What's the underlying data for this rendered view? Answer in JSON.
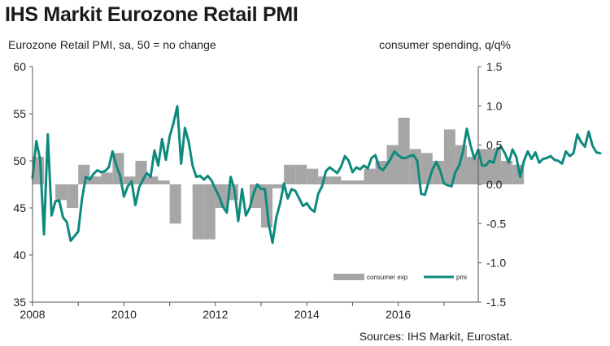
{
  "chart_data": {
    "type": "bar+line",
    "title": "IHS Markit Eurozone Retail PMI",
    "left_axis_label": "Eurozone Retail PMI, sa, 50 = no change",
    "right_axis_label": "consumer spending, q/q%",
    "source": "Sources: IHS Markit, Eurostat.",
    "left_axis": {
      "min": 35,
      "max": 60,
      "ticks": [
        60,
        55,
        50,
        45,
        40,
        35
      ],
      "tick_labels": [
        "60",
        "55",
        "50",
        "45",
        "40",
        "35"
      ]
    },
    "right_axis": {
      "min": -1.5,
      "max": 1.5,
      "ticks": [
        1.5,
        1.0,
        0.5,
        0.0,
        -0.5,
        -1.0,
        -1.5
      ],
      "tick_labels": [
        "1.5",
        "1.0",
        "0.5",
        "0.0",
        "-0.5",
        "-1.0",
        "-1.5"
      ]
    },
    "x_axis": {
      "start": 2008,
      "end": 2017.75,
      "ticks": [
        2008,
        2010,
        2012,
        2014,
        2016
      ],
      "tick_labels": [
        "2008",
        "2010",
        "2012",
        "2014",
        "2016"
      ]
    },
    "legend": [
      {
        "name": "consumer exp",
        "type": "bar",
        "color": "#a6a6a6"
      },
      {
        "name": "pmi",
        "type": "line",
        "color": "#0e8a7c"
      }
    ],
    "colors": {
      "bars": "#a6a6a6",
      "line": "#0e8a7c",
      "axis": "#555555"
    },
    "series": [
      {
        "name": "consumer exp",
        "axis": "right",
        "quarterly_start": 2008.0,
        "values": [
          0.35,
          0.0,
          -0.2,
          -0.3,
          0.25,
          0.1,
          0.15,
          0.4,
          0.1,
          0.3,
          0.1,
          0.05,
          -0.5,
          0.0,
          -0.7,
          -0.7,
          -0.3,
          -0.2,
          0.0,
          -0.3,
          -0.55,
          -0.05,
          0.25,
          0.25,
          0.2,
          0.1,
          0.1,
          0.05,
          0.05,
          0.2,
          0.3,
          0.5,
          0.85,
          0.45,
          0.4,
          0.3,
          0.7,
          0.5,
          0.35,
          0.45,
          0.45,
          0.3,
          0.25
        ]
      },
      {
        "name": "pmi",
        "axis": "left",
        "monthly_start": 2008.0,
        "values": [
          48.2,
          52.1,
          50.1,
          42.2,
          52.8,
          44.2,
          45.7,
          45.8,
          44.0,
          43.5,
          41.5,
          42.0,
          42.5,
          46.0,
          48.3,
          48.0,
          48.6,
          49.0,
          48.8,
          48.9,
          49.3,
          51.0,
          49.5,
          48.4,
          46.2,
          47.3,
          47.8,
          45.3,
          47.2,
          48.0,
          48.7,
          48.3,
          51.1,
          49.5,
          52.3,
          50.1,
          52.6,
          54.0,
          55.8,
          49.7,
          53.5,
          52.0,
          49.5,
          48.3,
          48.4,
          48.0,
          48.4,
          47.9,
          47.0,
          46.2,
          45.1,
          44.5,
          48.3,
          47.0,
          43.6,
          47.0,
          44.2,
          45.0,
          46.5,
          47.5,
          47.0,
          47.0,
          43.3,
          41.3,
          44.0,
          45.5,
          47.6,
          46.0,
          47.0,
          46.8,
          46.0,
          45.2,
          45.5,
          44.9,
          44.6,
          46.5,
          47.3,
          48.9,
          49.3,
          49.0,
          48.7,
          49.4,
          50.5,
          50.0,
          48.8,
          49.3,
          49.1,
          49.5,
          49.2,
          50.3,
          50.6,
          49.3,
          49.0,
          49.6,
          50.2,
          51.0,
          50.6,
          50.3,
          50.3,
          50.5,
          50.6,
          50.0,
          46.5,
          46.4,
          47.8,
          49.1,
          49.9,
          49.0,
          47.6,
          47.4,
          47.3,
          48.8,
          49.5,
          51.0,
          53.4,
          51.6,
          50.2,
          51.2,
          49.5,
          49.5,
          50.0,
          49.8,
          51.2,
          51.5,
          50.8,
          49.8,
          51.2,
          50.4,
          48.3,
          50.0,
          51.0,
          50.2,
          50.9,
          49.8,
          50.2,
          50.3,
          50.5,
          50.1,
          50.0,
          49.7,
          51.0,
          50.5,
          50.8,
          52.8,
          52.0,
          51.5,
          53.1,
          51.6,
          50.9,
          50.8
        ]
      }
    ]
  }
}
